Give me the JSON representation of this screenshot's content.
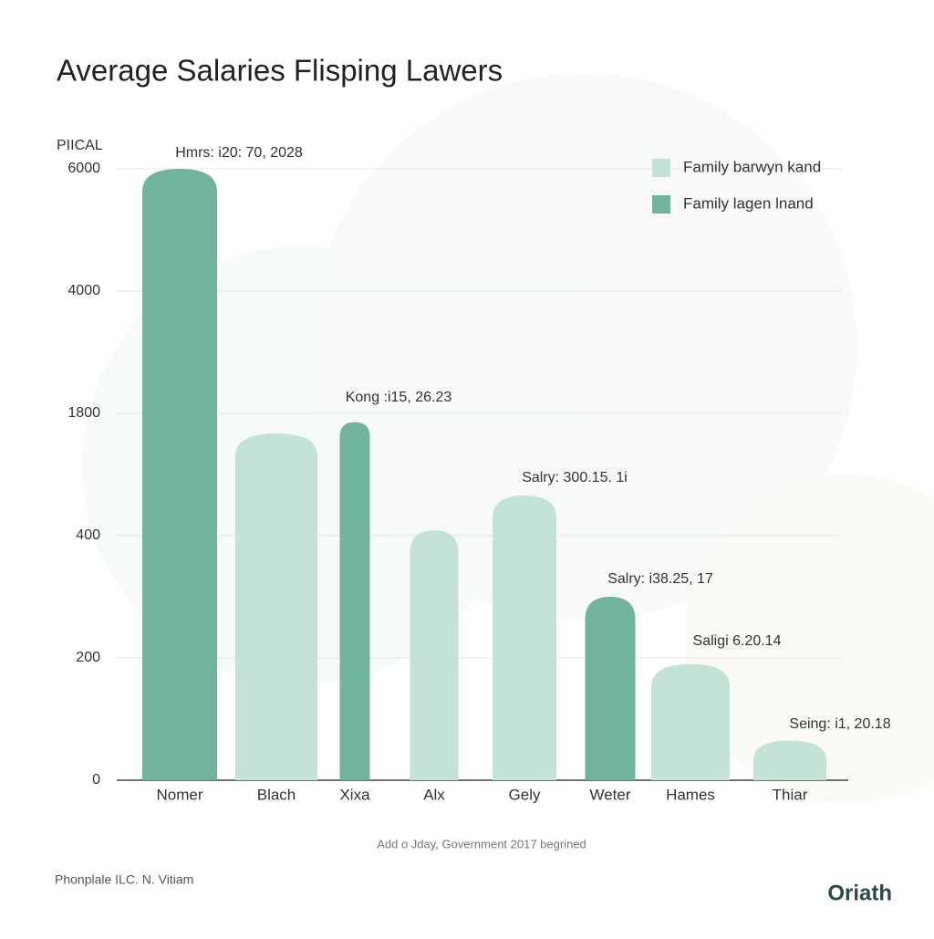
{
  "chart_data": {
    "type": "bar",
    "title": "Average Salaries Flisping Lawers",
    "y_label": "PIICAL",
    "categories": [
      "Nomer",
      "Blach",
      "Xixa",
      "Alx",
      "Gely",
      "Weter",
      "Hames",
      "Thiar"
    ],
    "series": [
      {
        "name": "Family barwyn kand",
        "color": "#c5e2d6",
        "values": [
          null,
          1570,
          null,
          460,
          860,
          null,
          190,
          65
        ]
      },
      {
        "name": "Family lagen lnand",
        "color": "#72b3a0",
        "values": [
          6000,
          null,
          1700,
          null,
          null,
          300,
          null,
          null
        ]
      }
    ],
    "ylim": [
      0,
      6000
    ],
    "yticks": [
      0,
      200,
      400,
      1800,
      4000,
      6000
    ],
    "grid": true,
    "legend": "top-right",
    "annotations": [
      "Hmrs: i20: 70, 2028",
      "Kong :i15, 26.23",
      "Salry: 300.15. 1i",
      "Salry: i38.25, 17",
      "Saligi 6.20.14",
      "Seing: i1, 20.18"
    ],
    "footnote": "Add o Jday, Government 2017 begrined",
    "source": "Phonplale ILC. N. Vitiam",
    "brand": "Oriath"
  }
}
